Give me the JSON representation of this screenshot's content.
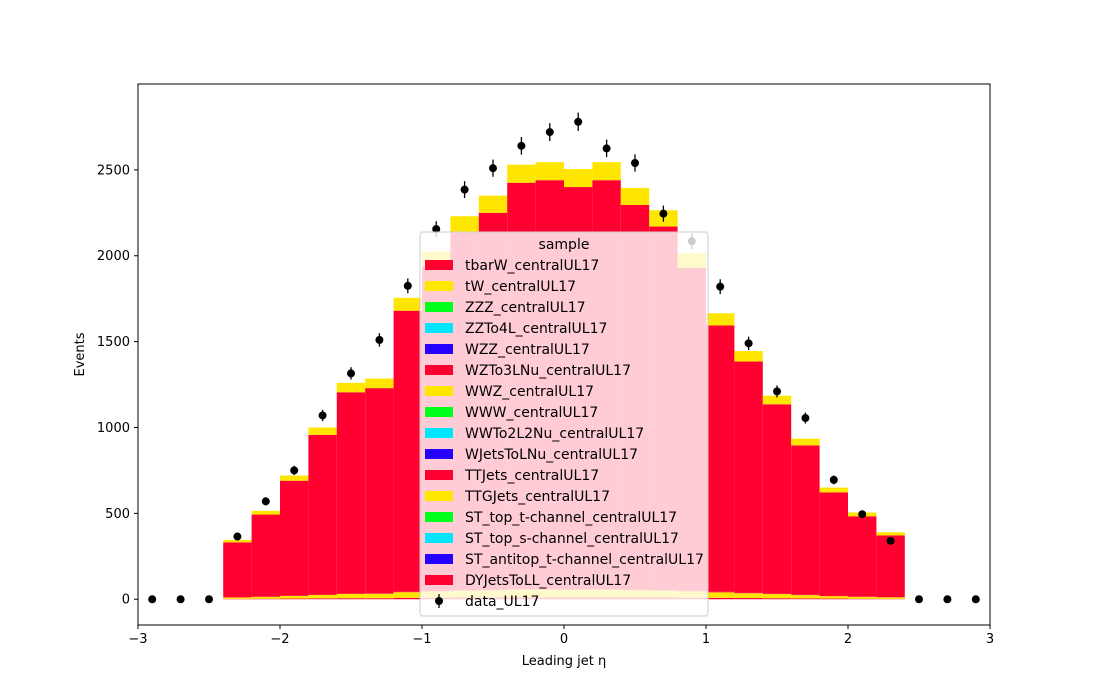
{
  "chart_data": {
    "type": "bar",
    "histtype": "stacked-step-filled",
    "xlabel": "Leading jet  η",
    "ylabel": "Events",
    "xlim": [
      -3,
      3
    ],
    "ylim": [
      -150,
      3000
    ],
    "xticks": [
      "−3",
      "−2",
      "−1",
      "0",
      "1",
      "2",
      "3"
    ],
    "xtick_values": [
      -3,
      -2,
      -1,
      0,
      1,
      2,
      3
    ],
    "yticks": [
      "0",
      "500",
      "1000",
      "1500",
      "2000",
      "2500"
    ],
    "ytick_values": [
      0,
      500,
      1000,
      1500,
      2000,
      2500
    ],
    "bin_edges": [
      -2.4,
      -2.2,
      -2.0,
      -1.8,
      -1.6,
      -1.4,
      -1.2,
      -1.0,
      -0.8,
      -0.6,
      -0.4,
      -0.2,
      0.0,
      0.2,
      0.4,
      0.6,
      0.8,
      1.0,
      1.2,
      1.4,
      1.6,
      1.8,
      2.0,
      2.2,
      2.4
    ],
    "mc_totals": [
      345,
      515,
      720,
      1000,
      1260,
      1285,
      1755,
      2025,
      2230,
      2350,
      2530,
      2545,
      2505,
      2545,
      2395,
      2265,
      2015,
      1665,
      1445,
      1185,
      935,
      650,
      505,
      390
    ],
    "series": [
      {
        "name": "tbarW_centralUL17",
        "color": "#ff0030",
        "values": [
          2,
          3,
          4,
          5,
          6,
          6,
          8,
          9,
          10,
          10,
          11,
          11,
          11,
          11,
          10,
          10,
          9,
          8,
          7,
          6,
          5,
          4,
          3,
          2
        ]
      },
      {
        "name": "tW_centralUL17",
        "color": "#ffe600",
        "values": [
          8,
          11,
          15,
          20,
          25,
          26,
          33,
          37,
          40,
          42,
          45,
          45,
          44,
          45,
          43,
          41,
          37,
          32,
          28,
          24,
          19,
          14,
          11,
          9
        ]
      },
      {
        "name": "ZZZ_centralUL17",
        "color": "#00ff1a",
        "values": [
          0,
          0,
          0,
          0,
          0,
          0,
          0,
          0,
          0,
          0,
          0,
          0,
          0,
          0,
          0,
          0,
          0,
          0,
          0,
          0,
          0,
          0,
          0,
          0
        ]
      },
      {
        "name": "ZZTo4L_centralUL17",
        "color": "#00e6ff",
        "values": [
          0,
          0,
          0,
          0,
          0,
          0,
          0,
          0,
          0,
          0,
          0,
          0,
          0,
          0,
          0,
          0,
          0,
          0,
          0,
          0,
          0,
          0,
          0,
          0
        ]
      },
      {
        "name": "WZZ_centralUL17",
        "color": "#2600ff",
        "values": [
          0,
          0,
          0,
          0,
          0,
          0,
          0,
          0,
          0,
          0,
          0,
          0,
          0,
          0,
          0,
          0,
          0,
          0,
          0,
          0,
          0,
          0,
          0,
          0
        ]
      },
      {
        "name": "WZTo3LNu_centralUL17",
        "color": "#ff0030",
        "values": [
          1,
          1,
          1,
          2,
          2,
          2,
          3,
          3,
          3,
          3,
          3,
          3,
          3,
          3,
          3,
          3,
          3,
          3,
          2,
          2,
          2,
          1,
          1,
          1
        ]
      },
      {
        "name": "WWZ_centralUL17",
        "color": "#ffe600",
        "values": [
          0,
          0,
          0,
          0,
          0,
          0,
          0,
          0,
          0,
          0,
          0,
          0,
          0,
          0,
          0,
          0,
          0,
          0,
          0,
          0,
          0,
          0,
          0,
          0
        ]
      },
      {
        "name": "WWW_centralUL17",
        "color": "#00ff1a",
        "values": [
          0,
          0,
          0,
          0,
          0,
          0,
          0,
          0,
          0,
          0,
          0,
          0,
          0,
          0,
          0,
          0,
          0,
          0,
          0,
          0,
          0,
          0,
          0,
          0
        ]
      },
      {
        "name": "WWTo2L2Nu_centralUL17",
        "color": "#00e6ff",
        "values": [
          0,
          0,
          0,
          0,
          0,
          0,
          0,
          0,
          0,
          0,
          0,
          0,
          0,
          0,
          0,
          0,
          0,
          0,
          0,
          0,
          0,
          0,
          0,
          0
        ]
      },
      {
        "name": "WJetsToLNu_centralUL17",
        "color": "#2600ff",
        "values": [
          0,
          0,
          0,
          0,
          0,
          0,
          0,
          0,
          0,
          0,
          0,
          0,
          0,
          0,
          0,
          0,
          0,
          0,
          0,
          0,
          0,
          0,
          0,
          0
        ]
      },
      {
        "name": "TTJets_centralUL17",
        "color": "#ff0030",
        "values": [
          320,
          478,
          670,
          930,
          1172,
          1195,
          1636,
          1890,
          2082,
          2195,
          2366,
          2381,
          2342,
          2381,
          2240,
          2116,
          1880,
          1551,
          1347,
          1103,
          870,
          603,
          468,
          360
        ]
      },
      {
        "name": "TTGJets_centralUL17",
        "color": "#ffe600",
        "values": [
          14,
          22,
          30,
          43,
          55,
          56,
          75,
          86,
          95,
          100,
          105,
          105,
          105,
          105,
          99,
          95,
          86,
          71,
          61,
          50,
          39,
          28,
          22,
          18
        ]
      },
      {
        "name": "ST_top_t-channel_centralUL17",
        "color": "#00ff1a",
        "values": [
          0,
          0,
          0,
          0,
          0,
          0,
          0,
          0,
          0,
          0,
          0,
          0,
          0,
          0,
          0,
          0,
          0,
          0,
          0,
          0,
          0,
          0,
          0,
          0
        ]
      },
      {
        "name": "ST_top_s-channel_centralUL17",
        "color": "#00e6ff",
        "values": [
          0,
          0,
          0,
          0,
          0,
          0,
          0,
          0,
          0,
          0,
          0,
          0,
          0,
          0,
          0,
          0,
          0,
          0,
          0,
          0,
          0,
          0,
          0,
          0
        ]
      },
      {
        "name": "ST_antitop_t-channel_centralUL17",
        "color": "#2600ff",
        "values": [
          0,
          0,
          0,
          0,
          0,
          0,
          0,
          0,
          0,
          0,
          0,
          0,
          0,
          0,
          0,
          0,
          0,
          0,
          0,
          0,
          0,
          0,
          0,
          0
        ]
      },
      {
        "name": "DYJetsToLL_centralUL17",
        "color": "#ff0030",
        "values": [
          0,
          0,
          0,
          0,
          0,
          0,
          0,
          0,
          0,
          0,
          0,
          0,
          0,
          0,
          0,
          0,
          0,
          0,
          0,
          0,
          0,
          0,
          0,
          0
        ]
      }
    ],
    "data_series": {
      "name": "data_UL17",
      "color": "#000000",
      "x": [
        -2.9,
        -2.7,
        -2.5,
        -2.3,
        -2.1,
        -1.9,
        -1.7,
        -1.5,
        -1.3,
        -1.1,
        -0.9,
        -0.7,
        -0.5,
        -0.3,
        -0.1,
        0.1,
        0.3,
        0.5,
        0.7,
        0.9,
        1.1,
        1.3,
        1.5,
        1.7,
        1.9,
        2.1,
        2.3,
        2.5,
        2.7,
        2.9
      ],
      "y": [
        0,
        0,
        0,
        365,
        570,
        750,
        1070,
        1315,
        1510,
        1825,
        2155,
        2385,
        2510,
        2640,
        2720,
        2780,
        2625,
        2540,
        2245,
        2085,
        1820,
        1490,
        1210,
        1055,
        695,
        495,
        340,
        0,
        0,
        0
      ],
      "yerr": [
        0,
        0,
        0,
        19,
        24,
        27,
        33,
        36,
        39,
        43,
        46,
        49,
        50,
        51,
        52,
        53,
        51,
        50,
        47,
        46,
        43,
        39,
        35,
        32,
        26,
        22,
        18,
        0,
        0,
        0
      ]
    },
    "legend": {
      "title": "sample",
      "placement": "center",
      "entries": [
        "tbarW_centralUL17",
        "tW_centralUL17",
        "ZZZ_centralUL17",
        "ZZTo4L_centralUL17",
        "WZZ_centralUL17",
        "WZTo3LNu_centralUL17",
        "WWZ_centralUL17",
        "WWW_centralUL17",
        "WWTo2L2Nu_centralUL17",
        "WJetsToLNu_centralUL17",
        "TTJets_centralUL17",
        "TTGJets_centralUL17",
        "ST_top_t-channel_centralUL17",
        "ST_top_s-channel_centralUL17",
        "ST_antitop_t-channel_centralUL17",
        "DYJetsToLL_centralUL17",
        "data_UL17"
      ]
    },
    "grid": false
  }
}
